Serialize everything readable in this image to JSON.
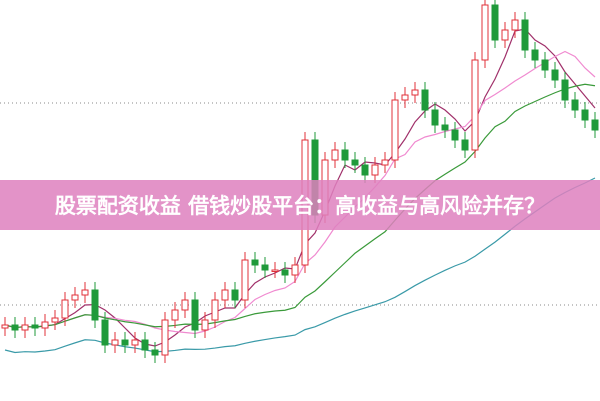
{
  "title": "股票配资收益 借钱炒股平台：高收益与高风险并存？",
  "colors": {
    "up": "#e0303a",
    "down": "#1f9a3a",
    "banner": "#de80be",
    "ma_short": "#a0306a",
    "ma_mid": "#f08ad0",
    "ma_long": "#3a9a3a",
    "ma_longest": "#3a9aa8",
    "grid": "#888888"
  },
  "chart_data": {
    "type": "candlestick",
    "ylim": [
      0,
      400
    ],
    "grid": "dotted horizontal",
    "open": [
      72,
      75,
      70,
      75,
      72,
      78,
      82,
      100,
      105,
      110,
      80,
      55,
      60,
      55,
      60,
      50,
      45,
      80,
      90,
      100,
      70,
      80,
      100,
      110,
      100,
      140,
      135,
      130,
      130,
      125,
      135,
      260,
      185,
      240,
      250,
      240,
      235,
      225,
      235,
      240,
      300,
      305,
      310,
      290,
      275,
      270,
      260,
      250,
      340,
      395,
      360,
      370,
      380,
      350,
      340,
      330,
      320,
      300,
      290,
      280
    ],
    "close": [
      75,
      70,
      75,
      72,
      78,
      82,
      100,
      105,
      110,
      80,
      55,
      60,
      55,
      60,
      50,
      45,
      80,
      90,
      100,
      70,
      80,
      100,
      110,
      100,
      140,
      135,
      130,
      130,
      125,
      135,
      260,
      185,
      240,
      250,
      240,
      235,
      225,
      235,
      240,
      300,
      305,
      310,
      290,
      275,
      270,
      260,
      250,
      340,
      395,
      360,
      370,
      380,
      350,
      340,
      330,
      320,
      300,
      290,
      280,
      270
    ],
    "moving_averages": [
      5,
      10,
      20,
      40
    ]
  }
}
